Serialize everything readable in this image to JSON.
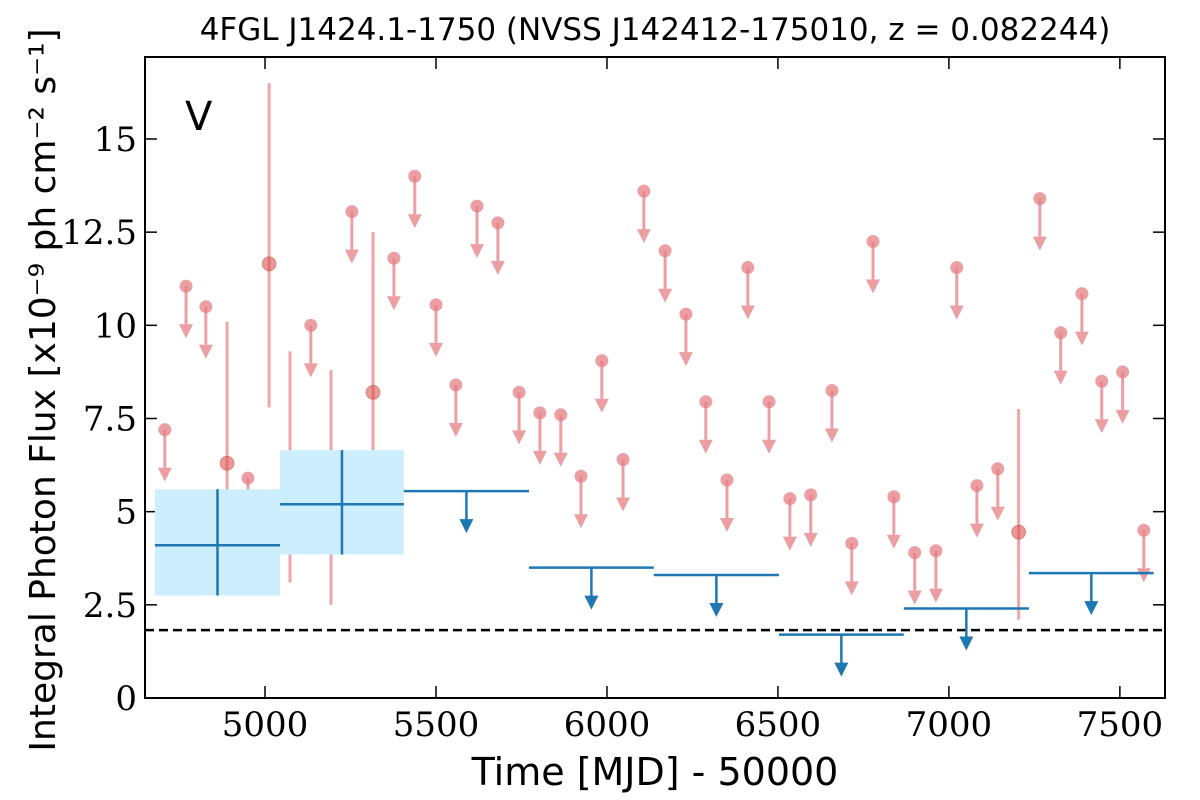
{
  "chart_data": {
    "type": "scatter",
    "title": "4FGL J1424.1-1750 (NVSS J142412-175010, z = 0.082244)",
    "xlabel": "Time [MJD] - 50000",
    "ylabel": "Integral Photon Flux [x10⁻⁹ ph cm⁻² s⁻¹]",
    "annotation": "V",
    "annotation_color": "#1f77b4",
    "xlim": [
      4649,
      7632
    ],
    "ylim": [
      0,
      17.2
    ],
    "xticks": [
      5000,
      5500,
      6000,
      6500,
      7000,
      7500
    ],
    "yticks": [
      0,
      2.5,
      5,
      7.5,
      10,
      12.5,
      15
    ],
    "hline": {
      "value": 1.82,
      "color": "#000000",
      "dashed": true
    },
    "series": [
      {
        "kind": "detection",
        "color": "#e57f84",
        "x": [
          4889,
          5012,
          5073,
          5193,
          5316,
          7204
        ],
        "values": [
          6.3,
          11.65,
          5.8,
          5.15,
          8.2,
          4.45
        ],
        "lower": [
          3.3,
          7.8,
          3.1,
          2.5,
          4.6,
          2.1
        ],
        "upper": [
          10.1,
          16.5,
          9.3,
          8.8,
          12.5,
          7.75
        ]
      },
      {
        "kind": "upper_limit",
        "color": "#e57f84",
        "x": [
          4707,
          4769,
          4827,
          4950,
          5134,
          5254,
          5377,
          5438,
          5500,
          5558,
          5620,
          5681,
          5743,
          5804,
          5865,
          5924,
          5985,
          6047,
          6108,
          6170,
          6231,
          6289,
          6351,
          6412,
          6474,
          6535,
          6596,
          6658,
          6716,
          6778,
          6839,
          6900,
          6962,
          7023,
          7082,
          7143,
          7266,
          7327,
          7389,
          7447,
          7508,
          7570
        ],
        "values": [
          7.2,
          11.05,
          10.5,
          5.9,
          10.0,
          13.05,
          11.8,
          14.0,
          10.55,
          8.4,
          13.2,
          12.75,
          8.2,
          7.65,
          7.6,
          5.95,
          9.05,
          6.4,
          13.6,
          12.0,
          10.3,
          7.95,
          5.85,
          11.55,
          7.95,
          5.35,
          5.45,
          8.25,
          4.15,
          12.25,
          5.4,
          3.9,
          3.95,
          11.55,
          5.7,
          6.15,
          13.4,
          9.8,
          10.85,
          8.5,
          8.75,
          4.5
        ]
      },
      {
        "kind": "binned_detection",
        "color": "#1f77b4",
        "box_color": "#cdeefd",
        "x_low": [
          4678,
          5044
        ],
        "x_high": [
          5044,
          5406
        ],
        "values": [
          4.1,
          5.2
        ],
        "lower": [
          2.75,
          3.85
        ],
        "upper": [
          5.6,
          6.65
        ]
      },
      {
        "kind": "binned_upper_limit",
        "color": "#1f77b4",
        "x_low": [
          5406,
          5772,
          6137,
          6503,
          6868,
          7234
        ],
        "x_high": [
          5772,
          6137,
          6503,
          6868,
          7234,
          7599
        ],
        "values": [
          5.55,
          3.5,
          3.3,
          1.7,
          2.4,
          3.35
        ]
      }
    ]
  }
}
